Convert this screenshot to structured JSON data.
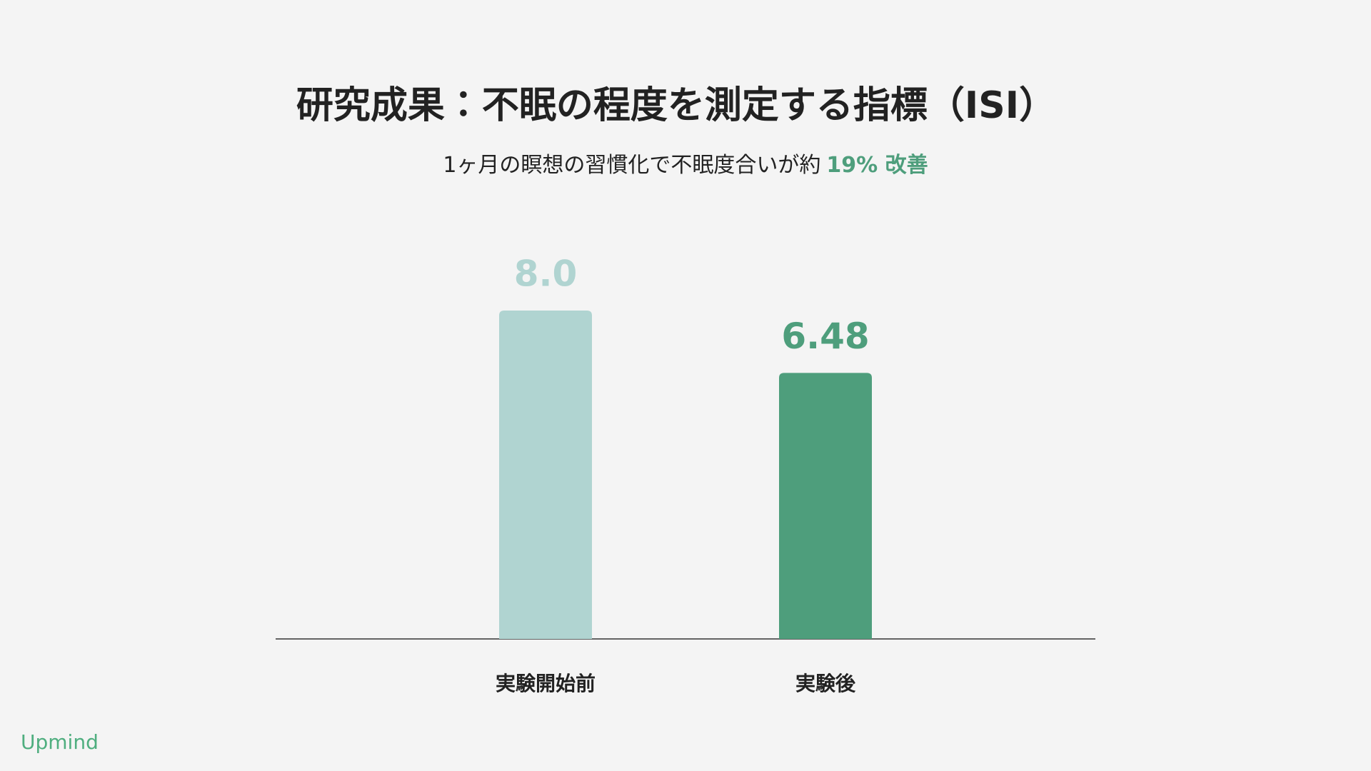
{
  "chart_data": {
    "type": "bar",
    "title": "研究成果：不眠の程度を測定する指標（ISI）",
    "subtitle": [
      "1ヶ月の瞑想の習慣化で不眠度合いが約",
      "19% 改善"
    ],
    "subtitle_highlight_color": "#4e9e7c",
    "categories": [
      "実験開始前",
      "実験後"
    ],
    "values": [
      8.0,
      6.48
    ],
    "value_labels": [
      "8.0",
      "6.48"
    ],
    "colors": [
      "#b0d4d1",
      "#4e9e7c"
    ],
    "ylim": [
      0,
      9
    ]
  },
  "logo": "Upmind"
}
